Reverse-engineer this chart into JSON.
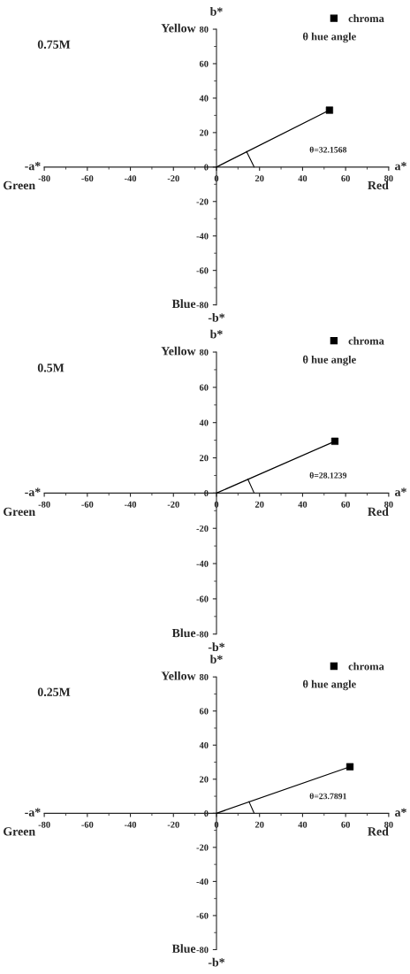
{
  "chart_data": [
    {
      "type": "scatter",
      "title": "0.75M",
      "xlabel": "a*",
      "ylabel": "b*",
      "xlim": [
        -80,
        80
      ],
      "ylim": [
        -80,
        80
      ],
      "xticks": [
        -80,
        -60,
        -40,
        -20,
        0,
        20,
        40,
        60,
        80
      ],
      "yticks": [
        -80,
        -60,
        -40,
        -20,
        0,
        20,
        40,
        60,
        80
      ],
      "grid": false,
      "legend": "top right",
      "series": [
        {
          "type": "line",
          "color": "#000000",
          "marker": "none",
          "x": [
            0,
            52.5
          ],
          "values": [
            0,
            33
          ]
        },
        {
          "name": "chroma",
          "color": "#000000",
          "marker": "square",
          "x": [
            52.5
          ],
          "values": [
            33
          ]
        }
      ],
      "annotations": [
        "-a*",
        "Green",
        "Red",
        "Yellow",
        "Blue",
        "-b*",
        "θ hue angle",
        "θ=32.1568"
      ]
    },
    {
      "type": "scatter",
      "title": "0.5M",
      "xlabel": "a*",
      "ylabel": "b*",
      "xlim": [
        -80,
        80
      ],
      "ylim": [
        -80,
        80
      ],
      "xticks": [
        -80,
        -60,
        -40,
        -20,
        0,
        20,
        40,
        60,
        80
      ],
      "yticks": [
        -80,
        -60,
        -40,
        -20,
        0,
        20,
        40,
        60,
        80
      ],
      "grid": false,
      "legend": "top right",
      "series": [
        {
          "type": "line",
          "color": "#000000",
          "marker": "none",
          "x": [
            0,
            55
          ],
          "values": [
            0,
            29.4
          ]
        },
        {
          "name": "chroma",
          "color": "#000000",
          "marker": "square",
          "x": [
            55
          ],
          "values": [
            29.4
          ]
        }
      ],
      "annotations": [
        "-a*",
        "Green",
        "Red",
        "Yellow",
        "Blue",
        "-b*",
        "θ hue angle",
        "θ=28.1239"
      ]
    },
    {
      "type": "scatter",
      "title": "0.25M",
      "xlabel": "a*",
      "ylabel": "b*",
      "xlim": [
        -80,
        80
      ],
      "ylim": [
        -80,
        80
      ],
      "xticks": [
        -80,
        -60,
        -40,
        -20,
        0,
        20,
        40,
        60,
        80
      ],
      "yticks": [
        -80,
        -60,
        -40,
        -20,
        0,
        20,
        40,
        60,
        80
      ],
      "grid": false,
      "legend": "top right",
      "series": [
        {
          "type": "line",
          "color": "#000000",
          "marker": "none",
          "x": [
            0,
            62
          ],
          "values": [
            0,
            27.3
          ]
        },
        {
          "name": "chroma",
          "color": "#000000",
          "marker": "square",
          "x": [
            62
          ],
          "values": [
            27.3
          ]
        }
      ],
      "annotations": [
        "-a*",
        "Green",
        "Red",
        "Yellow",
        "Blue",
        "-b*",
        "θ hue angle",
        "θ=23.7891"
      ]
    }
  ]
}
